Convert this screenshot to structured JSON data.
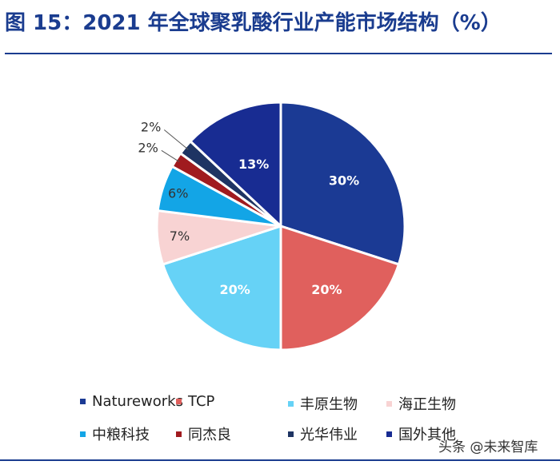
{
  "title": "图 15：2021 年全球聚乳酸行业产能市场结构（%）",
  "watermark": "头条 @未来智库",
  "chart_data": {
    "type": "pie",
    "slices": [
      {
        "name": "Natureworks",
        "value": 30,
        "label": "30%",
        "color": "#1b3a94"
      },
      {
        "name": "TCP",
        "value": 20,
        "label": "20%",
        "color": "#e0605d"
      },
      {
        "name": "丰原生物",
        "value": 20,
        "label": "20%",
        "color": "#66d2f6"
      },
      {
        "name": "海正生物",
        "value": 7,
        "label": "7%",
        "color": "#f8d3d3"
      },
      {
        "name": "中粮科技",
        "value": 6,
        "label": "6%",
        "color": "#13a5e6"
      },
      {
        "name": "同杰良",
        "value": 2,
        "label": "2%",
        "color": "#a01b1f"
      },
      {
        "name": "光华伟业",
        "value": 2,
        "label": "2%",
        "color": "#1e3463"
      },
      {
        "name": "国外其他",
        "value": 13,
        "label": "13%",
        "color": "#182c92"
      }
    ],
    "legend_position": "bottom"
  }
}
